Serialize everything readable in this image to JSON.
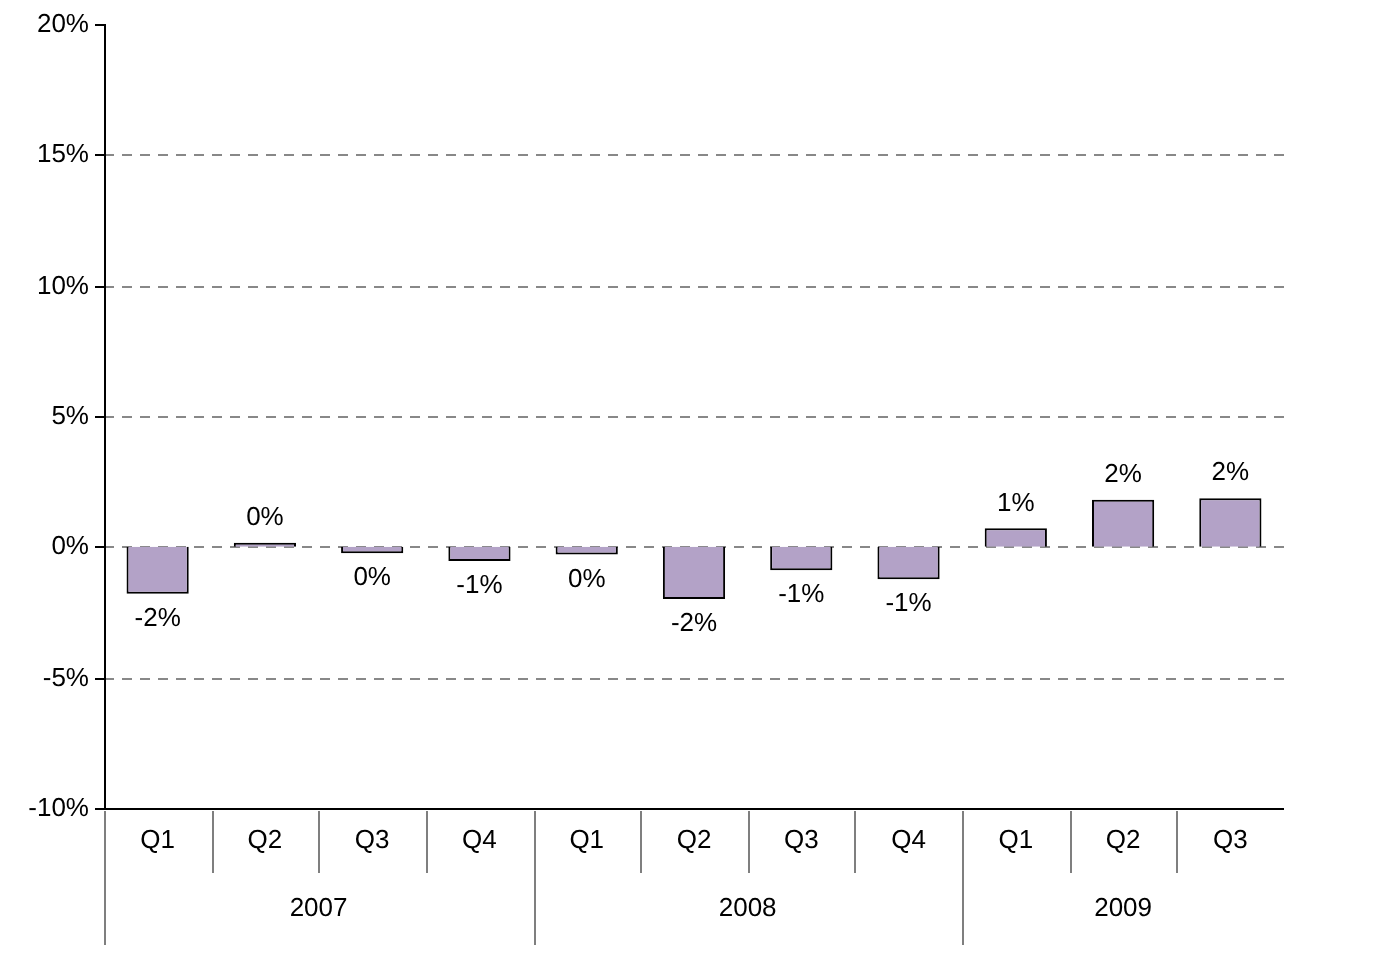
{
  "chart_data": {
    "type": "bar",
    "categories": [
      "Q1",
      "Q2",
      "Q3",
      "Q4",
      "Q1",
      "Q2",
      "Q3",
      "Q4",
      "Q1",
      "Q2",
      "Q3"
    ],
    "values": [
      -1.8,
      0.15,
      -0.25,
      -0.55,
      -0.3,
      -2.0,
      -0.9,
      -1.25,
      0.7,
      1.8,
      1.85
    ],
    "value_labels": [
      "-2%",
      "0%",
      "0%",
      "-1%",
      "0%",
      "-2%",
      "-1%",
      "-1%",
      "1%",
      "2%",
      "2%"
    ],
    "color": "#b3a2c7",
    "ylim": [
      -10,
      20
    ],
    "yticks": [
      {
        "value": -10,
        "label": "-10%"
      },
      {
        "value": -5,
        "label": "-5%"
      },
      {
        "value": 0,
        "label": "0%"
      },
      {
        "value": 5,
        "label": "5%"
      },
      {
        "value": 10,
        "label": "10%"
      },
      {
        "value": 15,
        "label": "15%"
      },
      {
        "value": 20,
        "label": "20%"
      }
    ],
    "grid": "y",
    "legend": false,
    "annotations": [
      "2007",
      "2008",
      "2009"
    ]
  }
}
